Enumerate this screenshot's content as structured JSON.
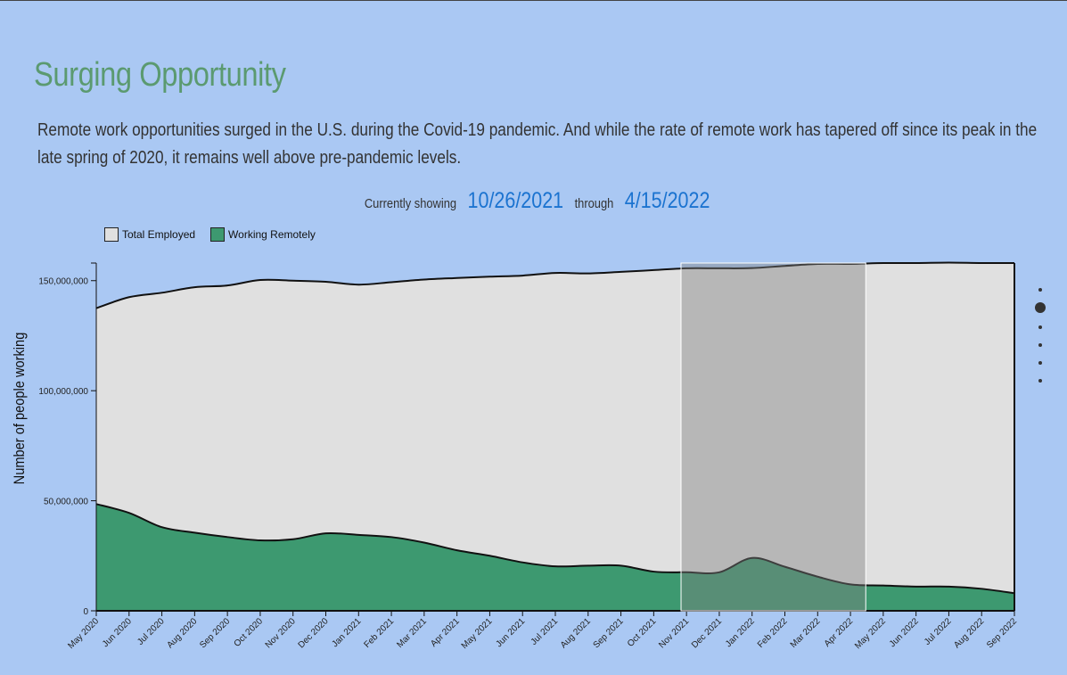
{
  "title": "Surging Opportunity",
  "description": "Remote work opportunities surged in the U.S. during the Covid-19 pandemic. And while the rate of remote work has tapered off since its peak in the late spring of 2020, it remains well above pre-pandemic levels.",
  "range": {
    "prefix": "Currently showing",
    "start": "10/26/2021",
    "separator": "through",
    "end": "4/15/2022"
  },
  "colors": {
    "total": "#e0e0e0",
    "remote": "#3d9970",
    "brush": "#7f7f7f",
    "accent": "#1b73d0"
  },
  "pager": {
    "count": 6,
    "active": 1
  },
  "chart_data": {
    "type": "area",
    "ylabel": "Number of people working",
    "ylim": [
      0,
      158000000
    ],
    "yticks": [
      0,
      50000000,
      100000000,
      150000000
    ],
    "ytick_labels": [
      "0",
      "50,000,000",
      "100,000,000",
      "150,000,000"
    ],
    "x_labels": [
      "May 2020",
      "Jun 2020",
      "Jul 2020",
      "Aug 2020",
      "Sep 2020",
      "Oct 2020",
      "Nov 2020",
      "Dec 2020",
      "Jan 2021",
      "Feb 2021",
      "Mar 2021",
      "Apr 2021",
      "May 2021",
      "Jun 2021",
      "Jul 2021",
      "Aug 2021",
      "Sep 2021",
      "Oct 2021",
      "Nov 2021",
      "Dec 2021",
      "Jan 2022",
      "Feb 2022",
      "Mar 2022",
      "Apr 2022",
      "May 2022",
      "Jun 2022",
      "Jul 2022",
      "Aug 2022",
      "Sep 2022"
    ],
    "legend": [
      "Total Employed",
      "Working Remotely"
    ],
    "legend_position": "top-left",
    "series": [
      {
        "name": "Total Employed",
        "values": [
          137500000,
          142500000,
          144500000,
          147000000,
          147800000,
          150300000,
          150000000,
          149500000,
          148200000,
          149300000,
          150500000,
          151200000,
          151800000,
          152300000,
          153500000,
          153300000,
          154000000,
          154800000,
          155600000,
          155600000,
          155700000,
          156700000,
          157600000,
          157600000,
          158000000,
          158000000,
          158200000,
          158000000,
          158000000
        ]
      },
      {
        "name": "Working Remotely",
        "values": [
          48500000,
          44500000,
          38000000,
          35500000,
          33500000,
          32000000,
          32500000,
          35200000,
          34500000,
          33500000,
          31000000,
          27500000,
          25000000,
          22000000,
          20200000,
          20500000,
          20500000,
          17800000,
          17500000,
          17500000,
          24000000,
          20000000,
          15500000,
          12000000,
          11500000,
          11000000,
          11000000,
          10000000,
          8000000
        ]
      }
    ],
    "selection": {
      "start": "10/26/2021",
      "end": "4/15/2022"
    },
    "grid": false
  }
}
